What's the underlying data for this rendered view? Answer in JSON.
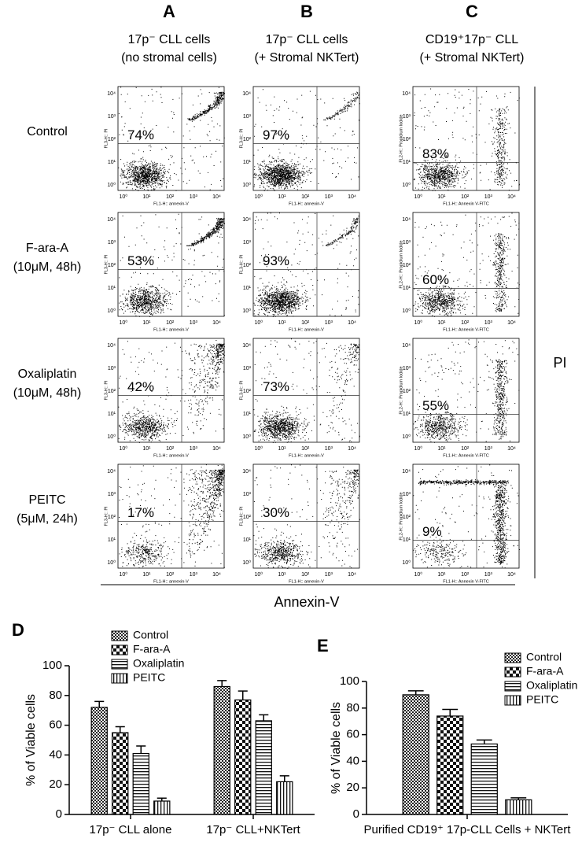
{
  "flow_panel": {
    "columns": [
      {
        "letter": "A",
        "title": [
          "17p⁻ CLL cells",
          "(no stromal cells)"
        ],
        "x_label": "FL1-H:: annexin-V",
        "y_label": "FL3-H:: PI"
      },
      {
        "letter": "B",
        "title": [
          "17p⁻ CLL cells",
          "(+ Stromal NKTert)"
        ],
        "x_label": "FL1-H:: annexin-V",
        "y_label": "FL3-H:: PI"
      },
      {
        "letter": "C",
        "title": [
          "CD19⁺17p⁻ CLL",
          "(+ Stromal NKTert)"
        ],
        "x_label": "FL1-H:: Annexin V-FITC",
        "y_label": "FL2-H:: Propidium Iodide"
      }
    ],
    "rows": [
      {
        "label": [
          "Control"
        ],
        "percentages": [
          "74%",
          "97%",
          "83%"
        ]
      },
      {
        "label": [
          "F-ara-A",
          "(10μM, 48h)"
        ],
        "percentages": [
          "53%",
          "93%",
          "60%"
        ]
      },
      {
        "label": [
          "Oxaliplatin",
          "(10μM, 48h)"
        ],
        "percentages": [
          "42%",
          "73%",
          "55%"
        ]
      },
      {
        "label": [
          "PEITC",
          "(5μM, 24h)"
        ],
        "percentages": [
          "17%",
          "30%",
          "9%"
        ]
      }
    ],
    "tick_labels": [
      "10⁰",
      "10¹",
      "10²",
      "10³",
      "10⁴"
    ],
    "x_title": "Annexin-V",
    "y_title": "PI"
  },
  "chart_data": [
    {
      "type": "bar",
      "letter": "D",
      "y_label": "% of Viable cells",
      "categories": [
        "17p⁻ CLL alone",
        "17p⁻ CLL+NKTert"
      ],
      "series": [
        {
          "name": "Control",
          "color": "#000000",
          "pattern": "checker-fine",
          "values": [
            72,
            86
          ],
          "errors": [
            4,
            4
          ]
        },
        {
          "name": "F-ara-A",
          "color": "#000000",
          "pattern": "checker-coarse",
          "values": [
            55,
            77
          ],
          "errors": [
            4,
            6
          ]
        },
        {
          "name": "Oxaliplatin",
          "color": "#000000",
          "pattern": "hlines",
          "values": [
            41,
            63
          ],
          "errors": [
            5,
            4
          ]
        },
        {
          "name": "PEITC",
          "color": "#000000",
          "pattern": "vlines",
          "values": [
            9,
            22
          ],
          "errors": [
            2,
            4
          ]
        }
      ],
      "ylim": [
        0,
        100
      ],
      "yticks": [
        0,
        20,
        40,
        60,
        80,
        100
      ]
    },
    {
      "type": "bar",
      "letter": "E",
      "y_label": "% of Viable cells",
      "categories": [
        "Purified CD19⁺ 17p-CLL Cells + NKTert"
      ],
      "series": [
        {
          "name": "Control",
          "color": "#000000",
          "pattern": "checker-fine",
          "values": [
            90
          ],
          "errors": [
            3
          ]
        },
        {
          "name": "F-ara-A",
          "color": "#000000",
          "pattern": "checker-coarse",
          "values": [
            74
          ],
          "errors": [
            5
          ]
        },
        {
          "name": "Oxaliplatin",
          "color": "#000000",
          "pattern": "hlines",
          "values": [
            53
          ],
          "errors": [
            3
          ]
        },
        {
          "name": "PEITC",
          "color": "#000000",
          "pattern": "vlines",
          "values": [
            11
          ],
          "errors": [
            1.5
          ]
        }
      ],
      "ylim": [
        0,
        100
      ],
      "yticks": [
        0,
        20,
        40,
        60,
        80,
        100
      ]
    }
  ]
}
